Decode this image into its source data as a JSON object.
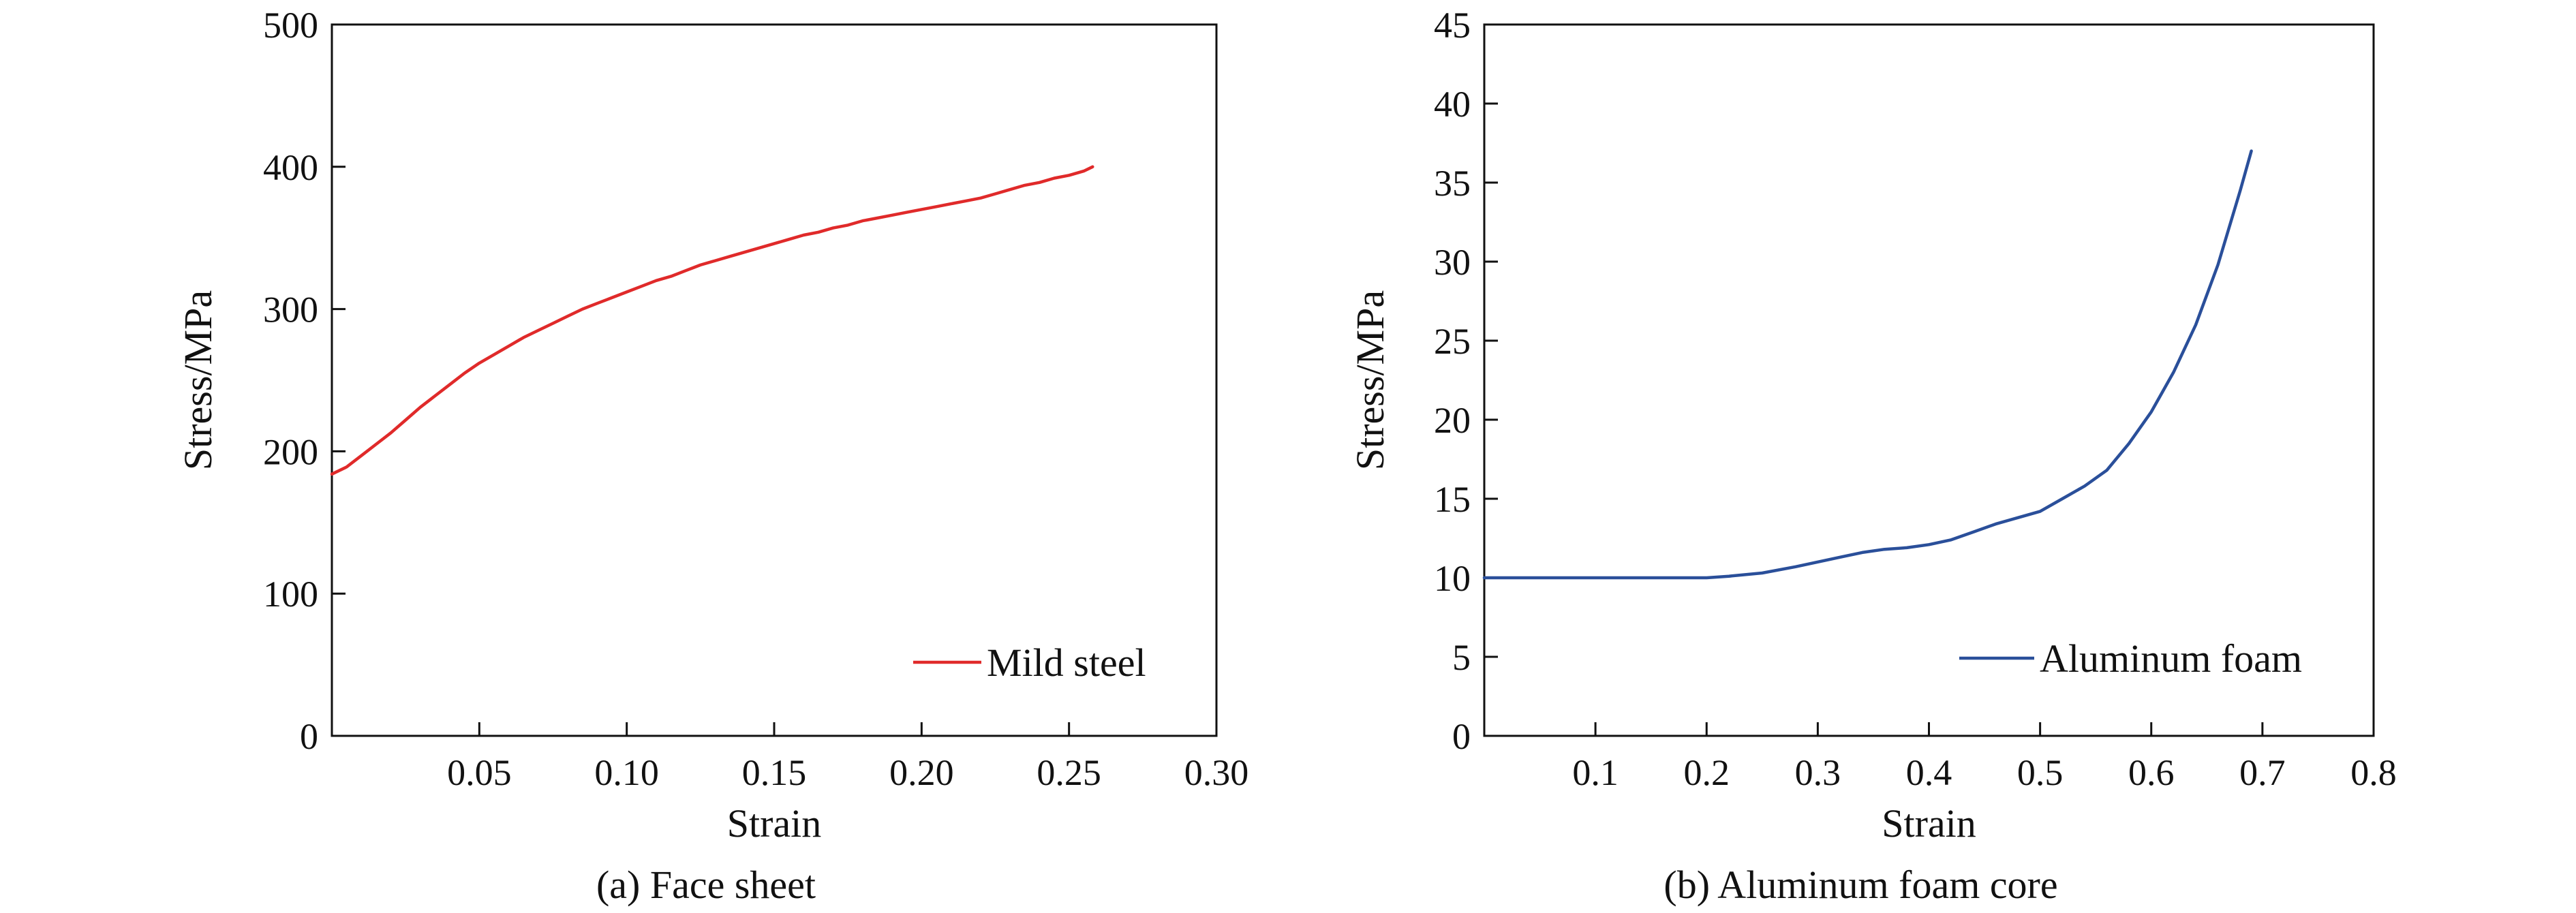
{
  "chart_data": [
    {
      "type": "line",
      "caption": "(a) Face sheet",
      "xlabel": "Strain",
      "ylabel": "Stress/MPa",
      "xlim": [
        0,
        0.3
      ],
      "ylim": [
        0,
        500
      ],
      "x_ticks": [
        0.05,
        0.1,
        0.15,
        0.2,
        0.25,
        0.3
      ],
      "x_tick_labels": [
        "0.05",
        "0.10",
        "0.15",
        "0.20",
        "0.25",
        "0.30"
      ],
      "y_ticks": [
        0,
        100,
        200,
        300,
        400,
        500
      ],
      "y_tick_labels": [
        "0",
        "100",
        "200",
        "300",
        "400",
        "500"
      ],
      "legend": "bottom-right",
      "series": [
        {
          "name": "Mild steel",
          "color": "#e02a2a",
          "x": [
            0,
            0.005,
            0.01,
            0.015,
            0.02,
            0.025,
            0.03,
            0.035,
            0.04,
            0.045,
            0.05,
            0.055,
            0.06,
            0.065,
            0.07,
            0.075,
            0.08,
            0.085,
            0.09,
            0.095,
            0.1,
            0.105,
            0.11,
            0.115,
            0.12,
            0.125,
            0.13,
            0.135,
            0.14,
            0.145,
            0.15,
            0.155,
            0.16,
            0.165,
            0.17,
            0.175,
            0.18,
            0.185,
            0.19,
            0.195,
            0.2,
            0.205,
            0.21,
            0.215,
            0.22,
            0.225,
            0.23,
            0.235,
            0.24,
            0.245,
            0.25,
            0.255,
            0.258
          ],
          "y": [
            184,
            189,
            197,
            205,
            213,
            222,
            231,
            239,
            247,
            255,
            262,
            268,
            274,
            280,
            285,
            290,
            295,
            300,
            304,
            308,
            312,
            316,
            320,
            323,
            327,
            331,
            334,
            337,
            340,
            343,
            346,
            349,
            352,
            354,
            357,
            359,
            362,
            364,
            366,
            368,
            370,
            372,
            374,
            376,
            378,
            381,
            384,
            387,
            389,
            392,
            394,
            397,
            400
          ]
        }
      ]
    },
    {
      "type": "line",
      "caption": "(b) Aluminum foam core",
      "xlabel": "Strain",
      "ylabel": "Stress/MPa",
      "xlim": [
        0,
        0.8
      ],
      "ylim": [
        0,
        45
      ],
      "x_ticks": [
        0.1,
        0.2,
        0.3,
        0.4,
        0.5,
        0.6,
        0.7,
        0.8
      ],
      "x_tick_labels": [
        "0.1",
        "0.2",
        "0.3",
        "0.4",
        "0.5",
        "0.6",
        "0.7",
        "0.8"
      ],
      "y_ticks": [
        0,
        5,
        10,
        15,
        20,
        25,
        30,
        35,
        40,
        45
      ],
      "y_tick_labels": [
        "0",
        "5",
        "10",
        "15",
        "20",
        "25",
        "30",
        "35",
        "40",
        "45"
      ],
      "legend": "bottom-right",
      "series": [
        {
          "name": "Aluminum foam",
          "color": "#2a4f9a",
          "x": [
            0,
            0.05,
            0.1,
            0.15,
            0.2,
            0.22,
            0.25,
            0.28,
            0.3,
            0.32,
            0.34,
            0.36,
            0.38,
            0.4,
            0.42,
            0.44,
            0.46,
            0.48,
            0.5,
            0.52,
            0.54,
            0.56,
            0.58,
            0.6,
            0.62,
            0.64,
            0.66,
            0.68,
            0.69
          ],
          "y": [
            10,
            10,
            10,
            10,
            10,
            10.1,
            10.3,
            10.7,
            11,
            11.3,
            11.6,
            11.8,
            11.9,
            12.1,
            12.4,
            12.9,
            13.4,
            13.8,
            14.2,
            15,
            15.8,
            16.8,
            18.5,
            20.5,
            23,
            26,
            29.8,
            34.5,
            37
          ]
        }
      ]
    }
  ]
}
